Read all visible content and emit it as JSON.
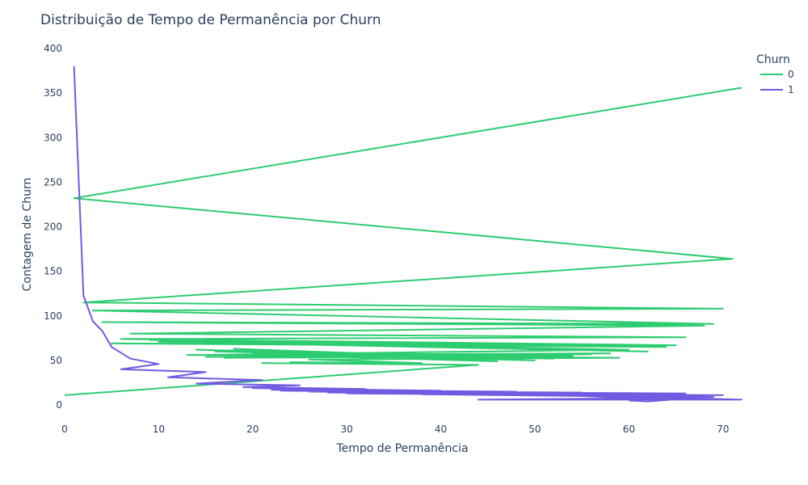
{
  "chart_data": {
    "type": "line",
    "title": "Distribuição de Tempo de Permanência por Churn",
    "xlabel": "Tempo de Permanência",
    "ylabel": "Contagem de Churn",
    "xlim": [
      0,
      72
    ],
    "ylim": [
      0,
      400
    ],
    "x_ticks": [
      "0",
      "10",
      "20",
      "30",
      "40",
      "50",
      "60",
      "70"
    ],
    "y_ticks": [
      "0",
      "50",
      "100",
      "150",
      "200",
      "250",
      "300",
      "350",
      "400"
    ],
    "grid": false,
    "legend": {
      "title": "Churn",
      "placement": "top-right"
    },
    "series": [
      {
        "name": "0",
        "color": "#2ecc71",
        "x": [
          72,
          1,
          71,
          2,
          70,
          3,
          69,
          4,
          68,
          7,
          66,
          6,
          65,
          5,
          64,
          9,
          62,
          10,
          60,
          13,
          58,
          15,
          56,
          17,
          54,
          16,
          52,
          14,
          50,
          20,
          48,
          18,
          46,
          22,
          59,
          26,
          38,
          24,
          36,
          21,
          44,
          0
        ],
        "y": [
          356,
          232,
          164,
          115,
          108,
          106,
          91,
          93,
          89,
          80,
          76,
          74,
          67,
          69,
          65,
          73,
          60,
          71,
          62,
          56,
          58,
          54,
          57,
          53,
          55,
          60,
          52,
          62,
          50,
          58,
          52,
          63,
          49,
          56,
          53,
          51,
          47,
          48,
          46,
          47,
          45,
          11
        ]
      },
      {
        "name": "1",
        "color": "#6f5ce0",
        "x": [
          1,
          2,
          3,
          4,
          5,
          7,
          10,
          6,
          15,
          11,
          21,
          14,
          25,
          19,
          32,
          20,
          40,
          22,
          48,
          23,
          55,
          26,
          66,
          28,
          70,
          30,
          68,
          38,
          65,
          45,
          62,
          50,
          60,
          54,
          69,
          58,
          63,
          62,
          72,
          44,
          67,
          62,
          60
        ],
        "y": [
          380,
          123,
          94,
          83,
          65,
          52,
          46,
          40,
          37,
          31,
          28,
          24,
          22,
          20,
          18,
          19,
          16,
          17,
          15,
          16,
          14,
          15,
          13,
          14,
          11,
          13,
          10,
          12,
          9,
          13,
          10,
          12,
          8,
          11,
          9,
          10,
          7,
          9,
          6,
          6,
          8,
          4,
          5
        ]
      }
    ]
  }
}
